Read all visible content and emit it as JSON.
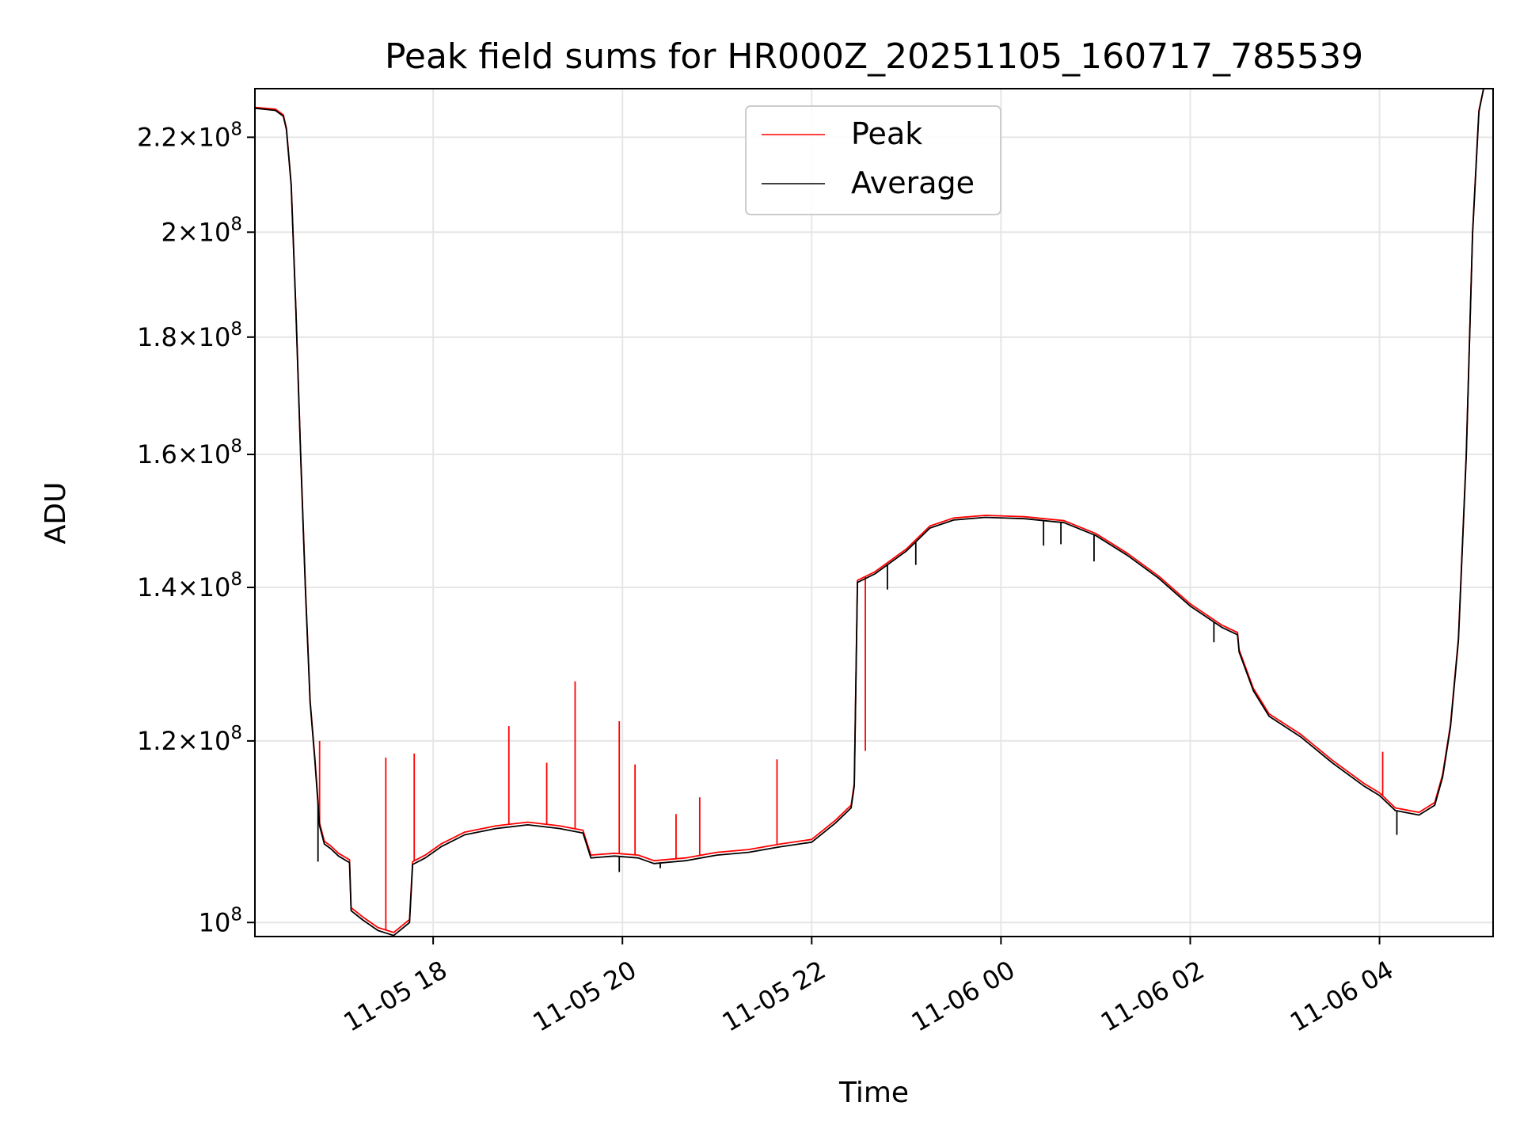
{
  "chart_data": {
    "type": "line",
    "title": "Peak field sums for HR000Z_20251105_160717_785539",
    "xlabel": "Time",
    "ylabel": "ADU",
    "x_scale": "time",
    "y_scale": "log",
    "xlim": [
      "2025-11-05 16:07",
      "2025-11-06 05:12"
    ],
    "ylim": [
      98600000,
      231000000
    ],
    "grid": true,
    "legend_position": "top-center",
    "x_ticks": [
      {
        "t": "2025-11-05 18:00",
        "label": "11-05 18"
      },
      {
        "t": "2025-11-05 20:00",
        "label": "11-05 20"
      },
      {
        "t": "2025-11-05 22:00",
        "label": "11-05 22"
      },
      {
        "t": "2025-11-06 00:00",
        "label": "11-06 00"
      },
      {
        "t": "2025-11-06 02:00",
        "label": "11-06 02"
      },
      {
        "t": "2025-11-06 04:00",
        "label": "11-06 04"
      }
    ],
    "y_ticks": [
      {
        "value": 100000000,
        "mantissa": "",
        "exp": "8"
      },
      {
        "value": 120000000,
        "mantissa": "1.2",
        "exp": "8"
      },
      {
        "value": 140000000,
        "mantissa": "1.4",
        "exp": "8"
      },
      {
        "value": 160000000,
        "mantissa": "1.6",
        "exp": "8"
      },
      {
        "value": 180000000,
        "mantissa": "1.8",
        "exp": "8"
      },
      {
        "value": 200000000,
        "mantissa": "2",
        "exp": "8"
      },
      {
        "value": 220000000,
        "mantissa": "2.2",
        "exp": "8"
      }
    ],
    "series": [
      {
        "name": "Peak",
        "color": "#ff0000",
        "points": [
          [
            "2025-11-05 16:07",
            226700000
          ],
          [
            "2025-11-05 16:20",
            226300000
          ],
          [
            "2025-11-05 16:25",
            225000000
          ],
          [
            "2025-11-05 16:27",
            222000000
          ],
          [
            "2025-11-05 16:30",
            210000000
          ],
          [
            "2025-11-05 16:33",
            185000000
          ],
          [
            "2025-11-05 16:36",
            160000000
          ],
          [
            "2025-11-05 16:39",
            140000000
          ],
          [
            "2025-11-05 16:42",
            125000000
          ],
          [
            "2025-11-05 16:45",
            118000000
          ],
          [
            "2025-11-05 16:48",
            110500000
          ],
          [
            "2025-11-05 16:51",
            108500000
          ],
          [
            "2025-11-05 16:55",
            108000000
          ],
          [
            "2025-11-05 17:00",
            107200000
          ],
          [
            "2025-11-05 17:07",
            106500000
          ],
          [
            "2025-11-05 17:08",
            101500000
          ],
          [
            "2025-11-05 17:15",
            100600000
          ],
          [
            "2025-11-05 17:25",
            99500000
          ],
          [
            "2025-11-05 17:35",
            99000000
          ],
          [
            "2025-11-05 17:45",
            100300000
          ],
          [
            "2025-11-05 17:47",
            106300000
          ],
          [
            "2025-11-05 17:55",
            107000000
          ],
          [
            "2025-11-05 18:05",
            108200000
          ],
          [
            "2025-11-05 18:20",
            109500000
          ],
          [
            "2025-11-05 18:40",
            110200000
          ],
          [
            "2025-11-05 19:00",
            110600000
          ],
          [
            "2025-11-05 19:20",
            110200000
          ],
          [
            "2025-11-05 19:35",
            109700000
          ],
          [
            "2025-11-05 19:40",
            107000000
          ],
          [
            "2025-11-05 19:55",
            107200000
          ],
          [
            "2025-11-05 20:10",
            107000000
          ],
          [
            "2025-11-05 20:20",
            106400000
          ],
          [
            "2025-11-05 20:40",
            106700000
          ],
          [
            "2025-11-05 21:00",
            107300000
          ],
          [
            "2025-11-05 21:20",
            107600000
          ],
          [
            "2025-11-05 21:40",
            108200000
          ],
          [
            "2025-11-05 22:00",
            108700000
          ],
          [
            "2025-11-05 22:15",
            110800000
          ],
          [
            "2025-11-05 22:25",
            112500000
          ],
          [
            "2025-11-05 22:27",
            115000000
          ],
          [
            "2025-11-05 22:29",
            141000000
          ],
          [
            "2025-11-05 22:40",
            142200000
          ],
          [
            "2025-11-05 23:00",
            145500000
          ],
          [
            "2025-11-05 23:15",
            148900000
          ],
          [
            "2025-11-05 23:30",
            150100000
          ],
          [
            "2025-11-05 23:50",
            150500000
          ],
          [
            "2025-11-06 00:15",
            150300000
          ],
          [
            "2025-11-06 00:40",
            149700000
          ],
          [
            "2025-11-06 01:00",
            147800000
          ],
          [
            "2025-11-06 01:20",
            144900000
          ],
          [
            "2025-11-06 01:40",
            141600000
          ],
          [
            "2025-11-06 02:00",
            137700000
          ],
          [
            "2025-11-06 02:20",
            134800000
          ],
          [
            "2025-11-06 02:30",
            133800000
          ],
          [
            "2025-11-06 02:31",
            131500000
          ],
          [
            "2025-11-06 02:40",
            126500000
          ],
          [
            "2025-11-06 02:50",
            123300000
          ],
          [
            "2025-11-06 03:10",
            120800000
          ],
          [
            "2025-11-06 03:30",
            117700000
          ],
          [
            "2025-11-06 03:50",
            115000000
          ],
          [
            "2025-11-06 04:00",
            113900000
          ],
          [
            "2025-11-06 04:10",
            112200000
          ],
          [
            "2025-11-06 04:25",
            111700000
          ],
          [
            "2025-11-06 04:35",
            112800000
          ],
          [
            "2025-11-06 04:40",
            116000000
          ],
          [
            "2025-11-06 04:45",
            122000000
          ],
          [
            "2025-11-06 04:50",
            133000000
          ],
          [
            "2025-11-06 04:55",
            160000000
          ],
          [
            "2025-11-06 04:59",
            200000000
          ],
          [
            "2025-11-06 05:03",
            226000000
          ],
          [
            "2025-11-06 05:06",
            231000000
          ]
        ],
        "spikes": [
          [
            "2025-11-05 16:48",
            120000000
          ],
          [
            "2025-11-05 17:30",
            118000000
          ],
          [
            "2025-11-05 17:48",
            118500000
          ],
          [
            "2025-11-05 18:48",
            121800000
          ],
          [
            "2025-11-05 19:12",
            117400000
          ],
          [
            "2025-11-05 19:30",
            127400000
          ],
          [
            "2025-11-05 19:58",
            122400000
          ],
          [
            "2025-11-05 20:08",
            117200000
          ],
          [
            "2025-11-05 20:34",
            111500000
          ],
          [
            "2025-11-05 20:49",
            113400000
          ],
          [
            "2025-11-05 21:38",
            117800000
          ],
          [
            "2025-11-05 22:34",
            118800000
          ],
          [
            "2025-11-06 04:02",
            118700000
          ]
        ]
      },
      {
        "name": "Average",
        "color": "#000000",
        "points": [
          [
            "2025-11-05 16:07",
            226500000
          ],
          [
            "2025-11-05 16:20",
            226000000
          ],
          [
            "2025-11-05 16:25",
            224700000
          ],
          [
            "2025-11-05 16:27",
            221700000
          ],
          [
            "2025-11-05 16:30",
            209700000
          ],
          [
            "2025-11-05 16:33",
            184700000
          ],
          [
            "2025-11-05 16:36",
            159700000
          ],
          [
            "2025-11-05 16:39",
            139700000
          ],
          [
            "2025-11-05 16:42",
            124800000
          ],
          [
            "2025-11-05 16:45",
            117700000
          ],
          [
            "2025-11-05 16:48",
            110200000
          ],
          [
            "2025-11-05 16:51",
            108200000
          ],
          [
            "2025-11-05 16:55",
            107700000
          ],
          [
            "2025-11-05 17:00",
            106900000
          ],
          [
            "2025-11-05 17:07",
            106200000
          ],
          [
            "2025-11-05 17:08",
            101200000
          ],
          [
            "2025-11-05 17:15",
            100300000
          ],
          [
            "2025-11-05 17:25",
            99200000
          ],
          [
            "2025-11-05 17:35",
            98700000
          ],
          [
            "2025-11-05 17:45",
            100000000
          ],
          [
            "2025-11-05 17:47",
            106000000
          ],
          [
            "2025-11-05 17:55",
            106700000
          ],
          [
            "2025-11-05 18:05",
            107900000
          ],
          [
            "2025-11-05 18:20",
            109200000
          ],
          [
            "2025-11-05 18:40",
            109900000
          ],
          [
            "2025-11-05 19:00",
            110300000
          ],
          [
            "2025-11-05 19:20",
            109900000
          ],
          [
            "2025-11-05 19:35",
            109400000
          ],
          [
            "2025-11-05 19:40",
            106700000
          ],
          [
            "2025-11-05 19:55",
            106900000
          ],
          [
            "2025-11-05 20:10",
            106700000
          ],
          [
            "2025-11-05 20:20",
            106100000
          ],
          [
            "2025-11-05 20:40",
            106400000
          ],
          [
            "2025-11-05 21:00",
            107000000
          ],
          [
            "2025-11-05 21:20",
            107300000
          ],
          [
            "2025-11-05 21:40",
            107900000
          ],
          [
            "2025-11-05 22:00",
            108400000
          ],
          [
            "2025-11-05 22:15",
            110500000
          ],
          [
            "2025-11-05 22:25",
            112200000
          ],
          [
            "2025-11-05 22:27",
            114700000
          ],
          [
            "2025-11-05 22:29",
            140700000
          ],
          [
            "2025-11-05 22:40",
            141900000
          ],
          [
            "2025-11-05 23:00",
            145200000
          ],
          [
            "2025-11-05 23:15",
            148600000
          ],
          [
            "2025-11-05 23:30",
            149800000
          ],
          [
            "2025-11-05 23:50",
            150200000
          ],
          [
            "2025-11-06 00:15",
            150000000
          ],
          [
            "2025-11-06 00:40",
            149400000
          ],
          [
            "2025-11-06 01:00",
            147500000
          ],
          [
            "2025-11-06 01:20",
            144600000
          ],
          [
            "2025-11-06 01:40",
            141300000
          ],
          [
            "2025-11-06 02:00",
            137400000
          ],
          [
            "2025-11-06 02:20",
            134500000
          ],
          [
            "2025-11-06 02:30",
            133500000
          ],
          [
            "2025-11-06 02:31",
            131200000
          ],
          [
            "2025-11-06 02:40",
            126200000
          ],
          [
            "2025-11-06 02:50",
            123000000
          ],
          [
            "2025-11-06 03:10",
            120500000
          ],
          [
            "2025-11-06 03:30",
            117400000
          ],
          [
            "2025-11-06 03:50",
            114700000
          ],
          [
            "2025-11-06 04:00",
            113600000
          ],
          [
            "2025-11-06 04:10",
            111900000
          ],
          [
            "2025-11-06 04:25",
            111400000
          ],
          [
            "2025-11-06 04:35",
            112500000
          ],
          [
            "2025-11-06 04:40",
            115700000
          ],
          [
            "2025-11-06 04:45",
            121700000
          ],
          [
            "2025-11-06 04:50",
            132700000
          ],
          [
            "2025-11-06 04:55",
            159700000
          ],
          [
            "2025-11-06 04:59",
            199700000
          ],
          [
            "2025-11-06 05:03",
            225700000
          ],
          [
            "2025-11-06 05:06",
            231000000
          ]
        ],
        "spikes": [
          [
            "2025-11-05 16:47",
            106300000
          ],
          [
            "2025-11-05 19:58",
            105200000
          ],
          [
            "2025-11-05 20:24",
            105600000
          ],
          [
            "2025-11-05 22:48",
            139700000
          ],
          [
            "2025-11-05 23:06",
            143200000
          ],
          [
            "2025-11-06 00:27",
            146000000
          ],
          [
            "2025-11-06 00:38",
            146200000
          ],
          [
            "2025-11-06 00:59",
            143700000
          ],
          [
            "2025-11-06 02:15",
            132500000
          ],
          [
            "2025-11-06 04:11",
            109200000
          ]
        ]
      }
    ]
  }
}
